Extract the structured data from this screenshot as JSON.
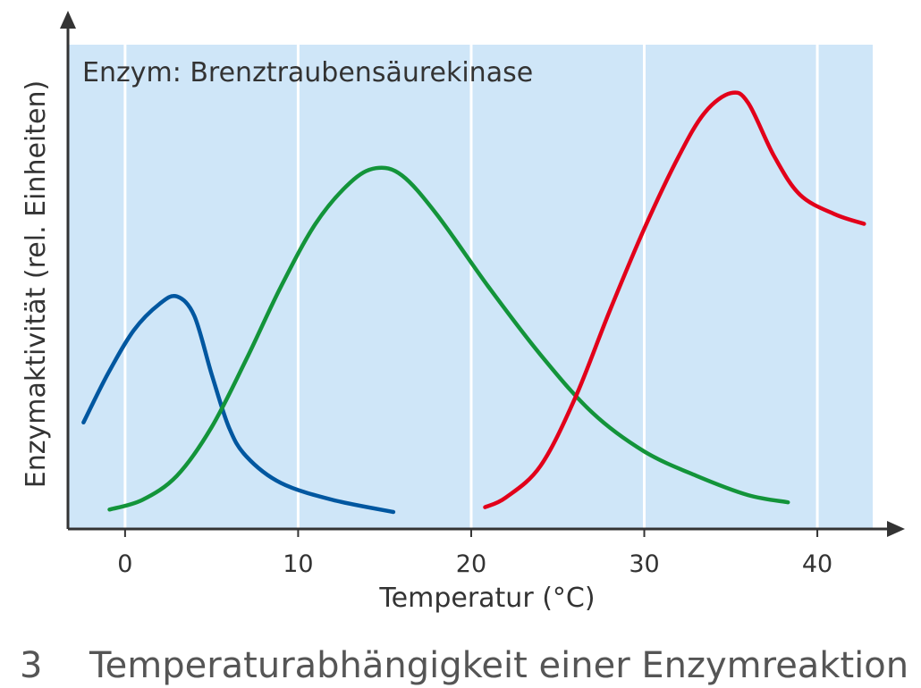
{
  "chart_data": {
    "type": "line",
    "title": "",
    "annotation": "Enzym: Brenztraubensäurekinase",
    "xlabel": "Temperatur (°C)",
    "ylabel": "Enzymaktivität (rel. Einheiten)",
    "xlim": [
      -3.3,
      43.2
    ],
    "ylim": [
      0,
      100
    ],
    "x_ticks": [
      0,
      10,
      20,
      30,
      40
    ],
    "x_tick_labels": [
      "0",
      "10",
      "20",
      "30",
      "40"
    ],
    "y_ticks_shown": false,
    "grid": "vertical",
    "legend": "none",
    "series": [
      {
        "color": "#0057a0",
        "points": [
          [
            -2.4,
            22
          ],
          [
            -1,
            32
          ],
          [
            0.5,
            41
          ],
          [
            2,
            46.5
          ],
          [
            3,
            48
          ],
          [
            4,
            44
          ],
          [
            5,
            32
          ],
          [
            6,
            21
          ],
          [
            7,
            15
          ],
          [
            9,
            9.5
          ],
          [
            12,
            6
          ],
          [
            15.5,
            3.5
          ]
        ]
      },
      {
        "color": "#13943a",
        "points": [
          [
            -0.9,
            4
          ],
          [
            1,
            6
          ],
          [
            3,
            11
          ],
          [
            5,
            21
          ],
          [
            7,
            35
          ],
          [
            9,
            50
          ],
          [
            11,
            63
          ],
          [
            13,
            71.5
          ],
          [
            14.5,
            74.5
          ],
          [
            16,
            73
          ],
          [
            18,
            65
          ],
          [
            21,
            50
          ],
          [
            24,
            36
          ],
          [
            27,
            24
          ],
          [
            30,
            16
          ],
          [
            33,
            11
          ],
          [
            36,
            7
          ],
          [
            38.3,
            5.5
          ]
        ]
      },
      {
        "color": "#e2001a",
        "points": [
          [
            20.8,
            4.5
          ],
          [
            22,
            6.5
          ],
          [
            24,
            13
          ],
          [
            26,
            27
          ],
          [
            28,
            45
          ],
          [
            30,
            62
          ],
          [
            32,
            77
          ],
          [
            33.5,
            86
          ],
          [
            35,
            90
          ],
          [
            36,
            88
          ],
          [
            37.5,
            77
          ],
          [
            39,
            69
          ],
          [
            41,
            65
          ],
          [
            42.7,
            63
          ]
        ]
      }
    ]
  },
  "figure": {
    "number": "3",
    "caption": "Temperaturabhängigkeit einer Enzymreaktion"
  }
}
